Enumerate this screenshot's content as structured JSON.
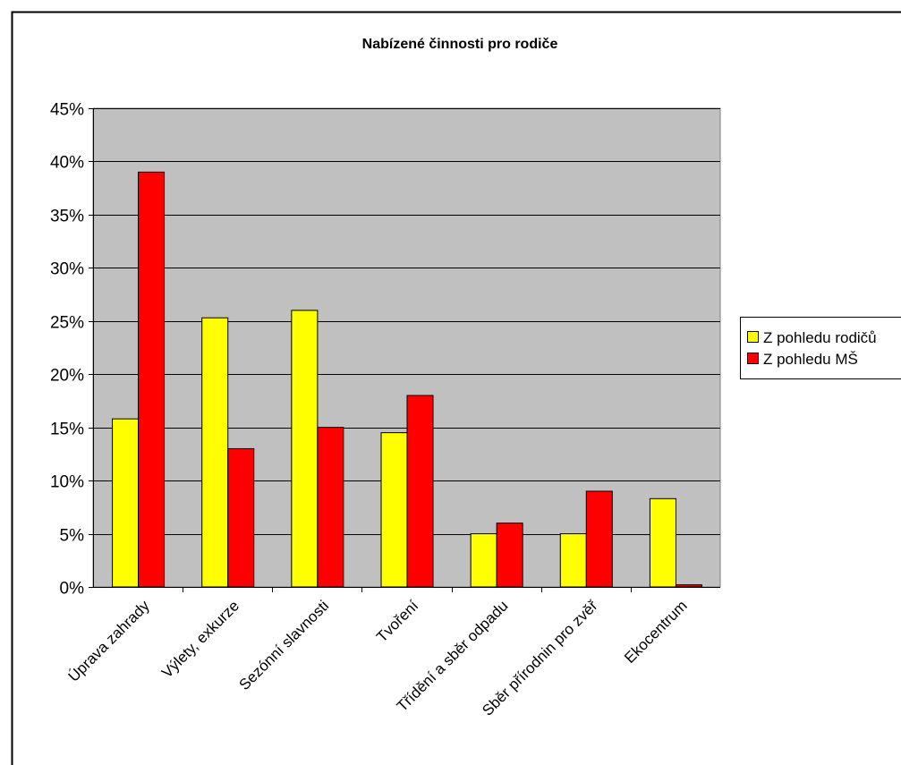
{
  "colors": {
    "plot_background": "#c0c0c0",
    "series_parents": "#ffff00",
    "series_school": "#ff0000",
    "border": "#000000"
  },
  "chart_data": {
    "type": "bar",
    "title": "Nabízené činnosti pro rodiče",
    "xlabel": "",
    "ylabel": "",
    "ylim": [
      0,
      45
    ],
    "yticks": [
      0,
      5,
      10,
      15,
      20,
      25,
      30,
      35,
      40,
      45
    ],
    "ytick_labels": [
      "0%",
      "5%",
      "10%",
      "15%",
      "20%",
      "25%",
      "30%",
      "35%",
      "40%",
      "45%"
    ],
    "grid": true,
    "legend_position": "right",
    "categories": [
      "Úprava zahrady",
      "Výlety, exkurze",
      "Sezónní slavnosti",
      "Tvoření",
      "Třídění a sběr odpadu",
      "Sběr přírodnin pro zvěř",
      "Ekocentrum"
    ],
    "series": [
      {
        "name": "Z pohledu rodičů",
        "color": "#ffff00",
        "values": [
          15.8,
          25.3,
          26.0,
          14.5,
          5.0,
          5.0,
          8.3
        ]
      },
      {
        "name": "Z pohledu MŠ",
        "color": "#ff0000",
        "values": [
          39.0,
          13.0,
          15.0,
          18.0,
          6.0,
          9.0,
          0.2
        ]
      }
    ]
  }
}
